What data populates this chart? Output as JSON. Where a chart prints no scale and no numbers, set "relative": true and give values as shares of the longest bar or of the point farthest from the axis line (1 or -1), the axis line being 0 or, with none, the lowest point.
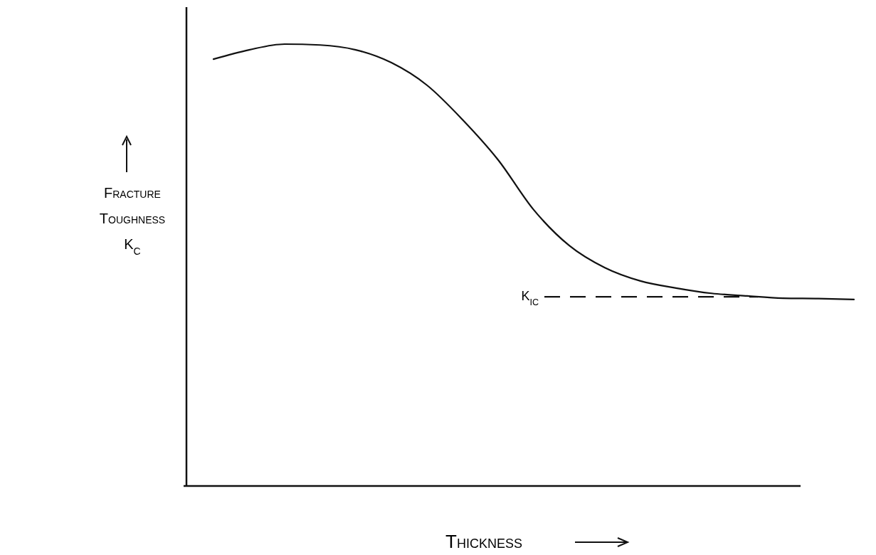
{
  "chart_data": {
    "type": "line",
    "relative": true,
    "xlabel": "Thickness",
    "ylabel": "Fracture Toughness K$_{C}$",
    "categories": [
      null,
      null,
      null,
      null,
      null,
      null,
      null,
      null,
      null,
      null,
      null,
      null,
      null,
      null,
      null,
      null,
      null,
      null,
      null
    ],
    "series": [
      {
        "color": "#111111",
        "values": [
          0.966,
          0.987,
          1.0,
          0.998,
          0.987,
          0.958,
          0.907,
          0.829,
          0.738,
          0.625,
          0.544,
          0.494,
          0.464,
          0.448,
          0.436,
          0.43,
          0.425,
          0.424,
          0.422
        ]
      }
    ],
    "ref_lines": [
      {
        "axis": "y",
        "value": 0.428,
        "label": "K$_{IC}$",
        "line_style": "dashed",
        "color": "#111111"
      }
    ],
    "line_style": "solid",
    "marker": "none"
  }
}
